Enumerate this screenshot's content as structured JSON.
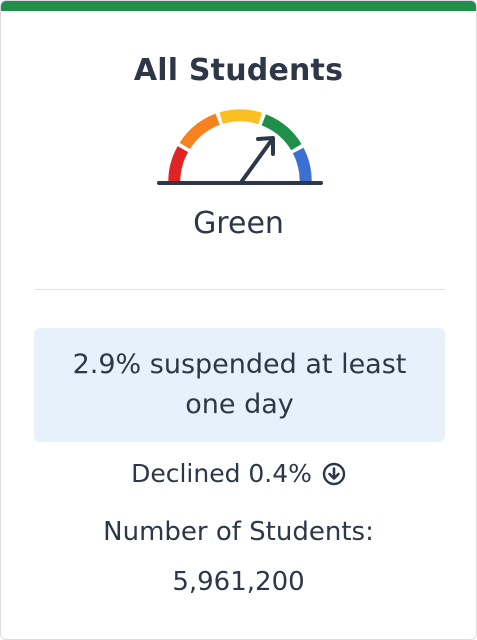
{
  "card": {
    "accent_color": "#1f8f4a",
    "title": "All Students",
    "gauge": {
      "icon": "gauge-meter-icon",
      "segments": [
        "#e02424",
        "#f5821f",
        "#fbbf24",
        "#1f8f4a",
        "#3b6fd1"
      ],
      "active_segment": "Green"
    },
    "status": "Green",
    "metric": "2.9% suspended at least one day",
    "change": {
      "text": "Declined 0.4%",
      "icon": "arrow-down-circle-icon"
    },
    "count_label": "Number of Students:",
    "count_value": "5,961,200"
  }
}
